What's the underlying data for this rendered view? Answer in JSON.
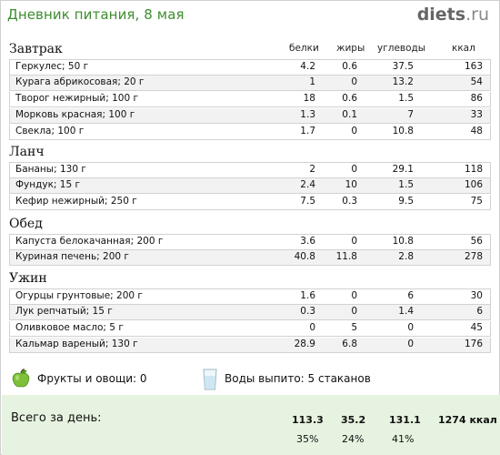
{
  "header": {
    "title": "Дневник питания, 8 мая",
    "logo_main": "diets",
    "logo_tld": ".ru"
  },
  "columns": [
    "белки",
    "жиры",
    "углеводы",
    "ккал"
  ],
  "meals": [
    {
      "title": "Завтрак",
      "items": [
        {
          "name": "Геркулес; 50 г",
          "protein": "4.2",
          "fat": "0.6",
          "carbs": "37.5",
          "kcal": "163"
        },
        {
          "name": "Курага абрикосовая; 20 г",
          "protein": "1",
          "fat": "0",
          "carbs": "13.2",
          "kcal": "54"
        },
        {
          "name": "Творог нежирный; 100 г",
          "protein": "18",
          "fat": "0.6",
          "carbs": "1.5",
          "kcal": "86"
        },
        {
          "name": "Морковь красная; 100 г",
          "protein": "1.3",
          "fat": "0.1",
          "carbs": "7",
          "kcal": "33"
        },
        {
          "name": "Свекла; 100 г",
          "protein": "1.7",
          "fat": "0",
          "carbs": "10.8",
          "kcal": "48"
        }
      ]
    },
    {
      "title": "Ланч",
      "items": [
        {
          "name": "Бананы; 130 г",
          "protein": "2",
          "fat": "0",
          "carbs": "29.1",
          "kcal": "118"
        },
        {
          "name": "Фундук; 15 г",
          "protein": "2.4",
          "fat": "10",
          "carbs": "1.5",
          "kcal": "106"
        },
        {
          "name": "Кефир нежирный; 250 г",
          "protein": "7.5",
          "fat": "0.3",
          "carbs": "9.5",
          "kcal": "75"
        }
      ]
    },
    {
      "title": "Обед",
      "items": [
        {
          "name": "Капуста белокачанная; 200 г",
          "protein": "3.6",
          "fat": "0",
          "carbs": "10.8",
          "kcal": "56"
        },
        {
          "name": "Куриная печень; 200 г",
          "protein": "40.8",
          "fat": "11.8",
          "carbs": "2.8",
          "kcal": "278"
        }
      ]
    },
    {
      "title": "Ужин",
      "items": [
        {
          "name": "Огурцы грунтовые; 200 г",
          "protein": "1.6",
          "fat": "0",
          "carbs": "6",
          "kcal": "30"
        },
        {
          "name": "Лук репчатый; 15 г",
          "protein": "0.3",
          "fat": "0",
          "carbs": "1.4",
          "kcal": "6"
        },
        {
          "name": "Оливковое масло; 5 г",
          "protein": "0",
          "fat": "5",
          "carbs": "0",
          "kcal": "45"
        },
        {
          "name": "Кальмар вареный; 130 г",
          "protein": "28.9",
          "fat": "6.8",
          "carbs": "0",
          "kcal": "176"
        }
      ]
    }
  ],
  "stats": {
    "fruits_icon": "green-apple-icon",
    "fruits": "Фрукты и овощи: 0",
    "water_icon": "water-glass-icon",
    "water": "Воды выпито: 5 стаканов"
  },
  "totals": {
    "label": "Всего за день:",
    "protein": "113.3",
    "fat": "35.2",
    "carbs": "131.1",
    "kcal": "1274 ккал",
    "protein_pct": "35%",
    "fat_pct": "24%",
    "carbs_pct": "41%"
  },
  "colors": {
    "title_green": "#3d8d2f",
    "total_bg": "#e6f3e0",
    "row_alt": "#f2f2f2"
  }
}
